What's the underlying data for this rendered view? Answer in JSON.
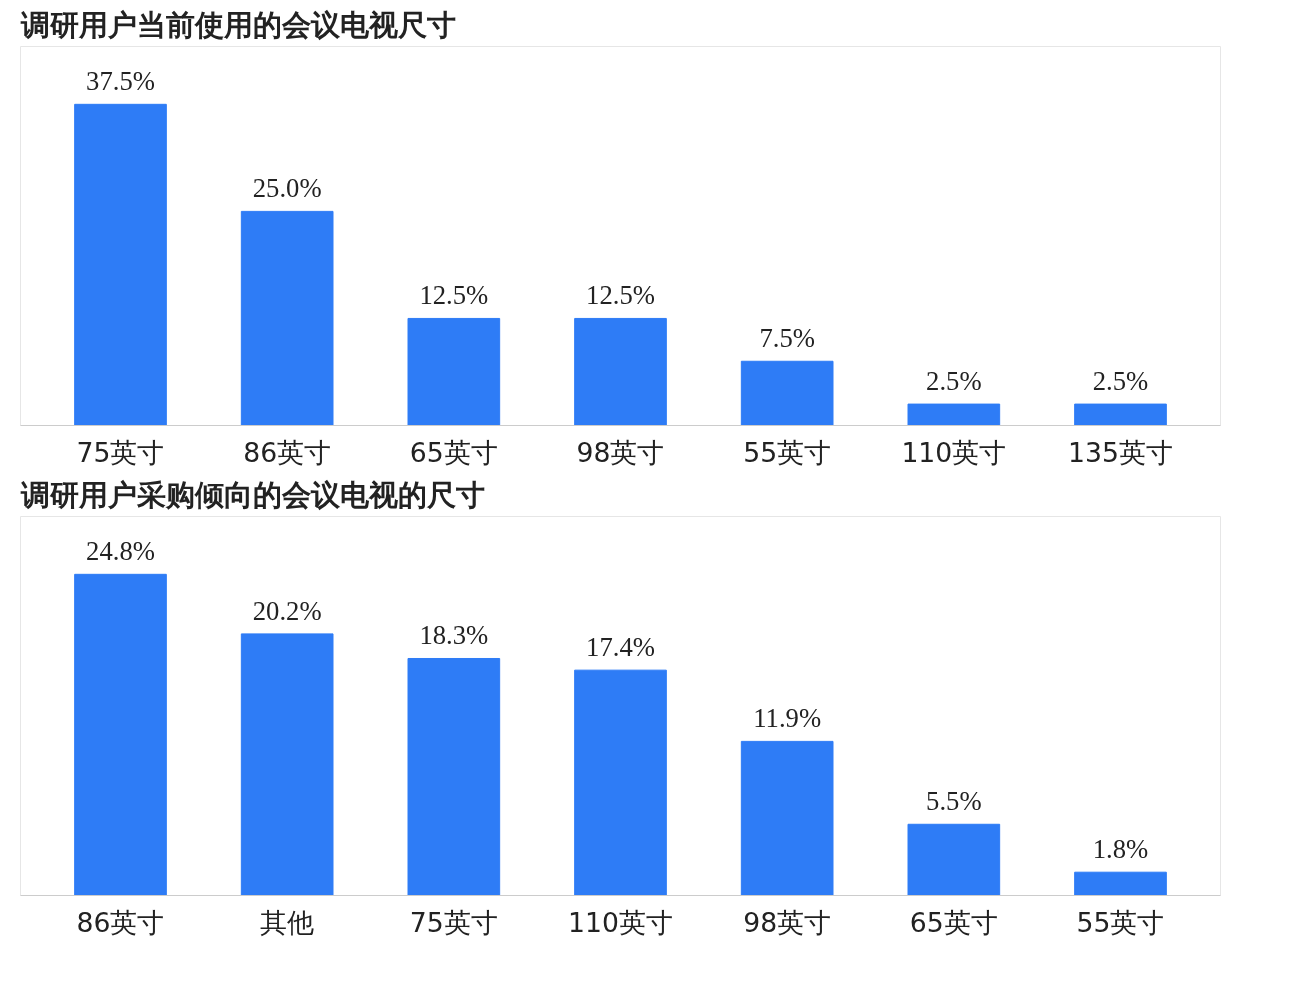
{
  "chart_data": [
    {
      "type": "bar",
      "title": "调研用户当前使用的会议电视尺寸",
      "categories": [
        "75英寸",
        "86英寸",
        "65英寸",
        "98英寸",
        "55英寸",
        "110英寸",
        "135英寸"
      ],
      "values": [
        37.5,
        25.0,
        12.5,
        12.5,
        7.5,
        2.5,
        2.5
      ],
      "value_labels": [
        "37.5%",
        "25.0%",
        "12.5%",
        "12.5%",
        "7.5%",
        "2.5%",
        "2.5%"
      ],
      "color": "#2e7cf6",
      "grid": false
    },
    {
      "type": "bar",
      "title": "调研用户采购倾向的会议电视的尺寸",
      "categories": [
        "86英寸",
        "其他",
        "75英寸",
        "110英寸",
        "98英寸",
        "65英寸",
        "55英寸"
      ],
      "values": [
        24.8,
        20.2,
        18.3,
        17.4,
        11.9,
        5.5,
        1.8
      ],
      "value_labels": [
        "24.8%",
        "20.2%",
        "18.3%",
        "17.4%",
        "11.9%",
        "5.5%",
        "1.8%"
      ],
      "color": "#2e7cf6",
      "grid": false
    }
  ]
}
